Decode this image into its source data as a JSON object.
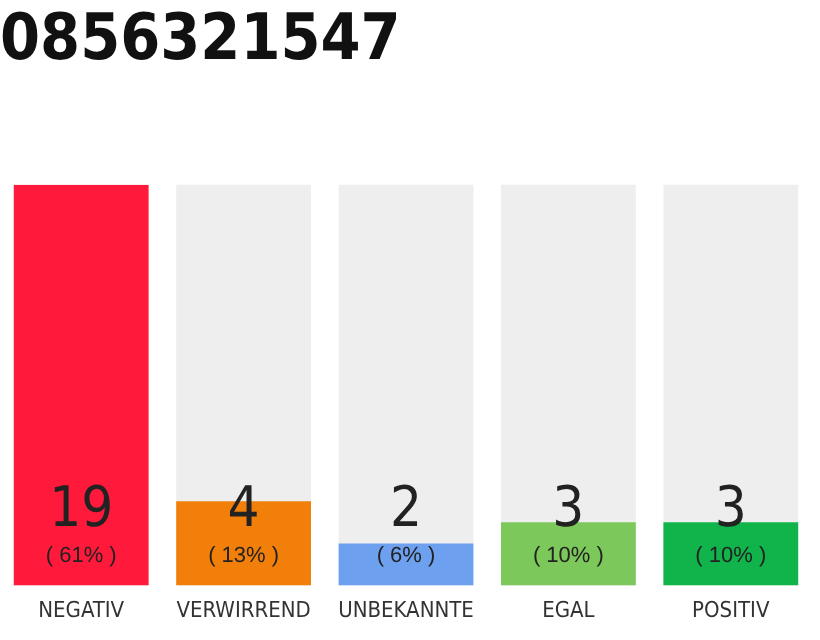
{
  "chart_data": {
    "type": "bar",
    "title": "0856321547",
    "categories": [
      "NEGATIV",
      "VERWIRREND",
      "UNBEKANNTE",
      "EGAL",
      "POSITIV"
    ],
    "values": [
      19,
      4,
      2,
      3,
      3
    ],
    "colors": [
      "#ff1a3c",
      "#f27f0a",
      "#6ea0f0",
      "#7cc85a",
      "#10b44a"
    ],
    "ylim": [
      0,
      19
    ],
    "tick_labels": "x",
    "grid": false,
    "legend": false,
    "data_labels": true,
    "annotations": [
      "( 61% )",
      "( 13% )",
      "( 6% )",
      "( 10% )",
      "( 10% )"
    ]
  }
}
